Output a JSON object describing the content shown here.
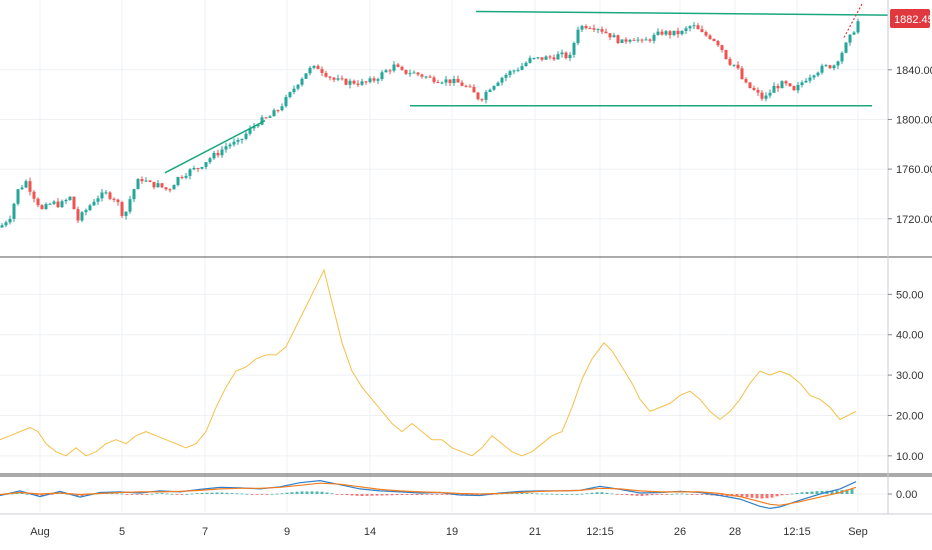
{
  "colors": {
    "up": "#26a69a",
    "down": "#ef5350",
    "grid": "#eef0f4",
    "axis_text": "#333333",
    "trendline": "#1aa780",
    "projection": "#e0383e",
    "price_tag": "#e0383e",
    "indicator_line": "#f5c04a",
    "macd_line": "#2f80c9",
    "signal_line": "#f27c1f"
  },
  "price_tag": "1882.45",
  "chart_data": [
    {
      "type": "candlestick",
      "panel": "price",
      "ylim": [
        1690,
        1893
      ],
      "y_ticks": [
        "1720.00",
        "1760.00",
        "1800.00",
        "1840.00"
      ],
      "x_index_range": [
        0,
        860
      ],
      "candles_close_path": [
        [
          0,
          1713
        ],
        [
          10,
          1722
        ],
        [
          18,
          1743
        ],
        [
          26,
          1750
        ],
        [
          34,
          1738
        ],
        [
          42,
          1727
        ],
        [
          52,
          1733
        ],
        [
          60,
          1731
        ],
        [
          70,
          1737
        ],
        [
          78,
          1719
        ],
        [
          86,
          1727
        ],
        [
          96,
          1737
        ],
        [
          106,
          1740
        ],
        [
          116,
          1736
        ],
        [
          124,
          1721
        ],
        [
          132,
          1741
        ],
        [
          140,
          1753
        ],
        [
          150,
          1748
        ],
        [
          158,
          1747
        ],
        [
          168,
          1743
        ],
        [
          178,
          1753
        ],
        [
          188,
          1758
        ],
        [
          198,
          1761
        ],
        [
          208,
          1768
        ],
        [
          218,
          1773
        ],
        [
          228,
          1780
        ],
        [
          238,
          1781
        ],
        [
          248,
          1790
        ],
        [
          258,
          1798
        ],
        [
          268,
          1801
        ],
        [
          278,
          1808
        ],
        [
          288,
          1818
        ],
        [
          298,
          1830
        ],
        [
          308,
          1840
        ],
        [
          318,
          1842
        ],
        [
          324,
          1838
        ],
        [
          334,
          1832
        ],
        [
          344,
          1830
        ],
        [
          354,
          1830
        ],
        [
          364,
          1829
        ],
        [
          374,
          1832
        ],
        [
          384,
          1838
        ],
        [
          394,
          1843
        ],
        [
          402,
          1838
        ],
        [
          410,
          1838
        ],
        [
          420,
          1836
        ],
        [
          430,
          1833
        ],
        [
          440,
          1832
        ],
        [
          450,
          1831
        ],
        [
          460,
          1829
        ],
        [
          470,
          1824
        ],
        [
          480,
          1816
        ],
        [
          490,
          1826
        ],
        [
          500,
          1833
        ],
        [
          510,
          1838
        ],
        [
          520,
          1842
        ],
        [
          530,
          1848
        ],
        [
          540,
          1849
        ],
        [
          550,
          1850
        ],
        [
          560,
          1852
        ],
        [
          570,
          1850
        ],
        [
          578,
          1874
        ],
        [
          588,
          1876
        ],
        [
          598,
          1874
        ],
        [
          606,
          1870
        ],
        [
          614,
          1866
        ],
        [
          622,
          1862
        ],
        [
          632,
          1867
        ],
        [
          642,
          1862
        ],
        [
          652,
          1866
        ],
        [
          662,
          1870
        ],
        [
          672,
          1869
        ],
        [
          682,
          1870
        ],
        [
          692,
          1876
        ],
        [
          702,
          1869
        ],
        [
          712,
          1866
        ],
        [
          720,
          1860
        ],
        [
          728,
          1847
        ],
        [
          736,
          1843
        ],
        [
          744,
          1829
        ],
        [
          754,
          1823
        ],
        [
          764,
          1816
        ],
        [
          774,
          1826
        ],
        [
          784,
          1829
        ],
        [
          794,
          1822
        ],
        [
          804,
          1832
        ],
        [
          814,
          1838
        ],
        [
          824,
          1842
        ],
        [
          834,
          1844
        ],
        [
          844,
          1857
        ],
        [
          852,
          1869
        ],
        [
          860,
          1882
        ]
      ],
      "trendlines": [
        {
          "from": [
            165,
            1757
          ],
          "to": [
            265,
            1799
          ]
        },
        {
          "from": [
            476,
            1887
          ],
          "to": [
            888,
            1884
          ]
        },
        {
          "from": [
            410,
            1811
          ],
          "to": [
            872,
            1811
          ]
        }
      ],
      "projection": {
        "from": [
          844,
          1866
        ],
        "to": [
          862,
          1893
        ]
      }
    },
    {
      "type": "line",
      "panel": "indicator",
      "ylim": [
        6,
        59
      ],
      "y_ticks": [
        "10.00",
        "20.00",
        "30.00",
        "40.00",
        "50.00"
      ],
      "series": [
        {
          "values": [
            [
              0,
              14
            ],
            [
              10,
              15
            ],
            [
              20,
              16
            ],
            [
              30,
              17
            ],
            [
              38,
              16
            ],
            [
              46,
              13
            ],
            [
              56,
              11
            ],
            [
              66,
              10
            ],
            [
              76,
              12
            ],
            [
              86,
              10
            ],
            [
              96,
              11
            ],
            [
              106,
              13
            ],
            [
              116,
              14
            ],
            [
              126,
              13
            ],
            [
              136,
              15
            ],
            [
              146,
              16
            ],
            [
              156,
              15
            ],
            [
              166,
              14
            ],
            [
              176,
              13
            ],
            [
              186,
              12
            ],
            [
              196,
              13
            ],
            [
              206,
              16
            ],
            [
              216,
              22
            ],
            [
              226,
              27
            ],
            [
              236,
              31
            ],
            [
              246,
              32
            ],
            [
              256,
              34
            ],
            [
              266,
              35
            ],
            [
              276,
              35
            ],
            [
              286,
              37
            ],
            [
              296,
              42
            ],
            [
              306,
              47
            ],
            [
              316,
              52
            ],
            [
              324,
              56
            ],
            [
              332,
              48
            ],
            [
              342,
              38
            ],
            [
              352,
              31
            ],
            [
              362,
              27
            ],
            [
              372,
              24
            ],
            [
              382,
              21
            ],
            [
              392,
              18
            ],
            [
              402,
              16
            ],
            [
              412,
              18
            ],
            [
              422,
              16
            ],
            [
              432,
              14
            ],
            [
              442,
              14
            ],
            [
              452,
              12
            ],
            [
              462,
              11
            ],
            [
              472,
              10
            ],
            [
              482,
              12
            ],
            [
              492,
              15
            ],
            [
              502,
              13
            ],
            [
              512,
              11
            ],
            [
              522,
              10
            ],
            [
              532,
              11
            ],
            [
              542,
              13
            ],
            [
              552,
              15
            ],
            [
              562,
              16
            ],
            [
              572,
              22
            ],
            [
              582,
              29
            ],
            [
              592,
              34
            ],
            [
              604,
              38
            ],
            [
              612,
              36
            ],
            [
              622,
              32
            ],
            [
              632,
              28
            ],
            [
              640,
              24
            ],
            [
              650,
              21
            ],
            [
              660,
              22
            ],
            [
              670,
              23
            ],
            [
              680,
              25
            ],
            [
              690,
              26
            ],
            [
              700,
              24
            ],
            [
              710,
              21
            ],
            [
              720,
              19
            ],
            [
              730,
              21
            ],
            [
              740,
              24
            ],
            [
              750,
              28
            ],
            [
              760,
              31
            ],
            [
              770,
              30
            ],
            [
              780,
              31
            ],
            [
              790,
              30
            ],
            [
              800,
              28
            ],
            [
              810,
              25
            ],
            [
              820,
              24
            ],
            [
              830,
              22
            ],
            [
              840,
              19
            ],
            [
              848,
              20
            ],
            [
              856,
              21
            ]
          ]
        }
      ]
    },
    {
      "type": "macd",
      "panel": "oscillator",
      "ylim": [
        -3.5,
        3.5
      ],
      "y_ticks": [
        "0.00"
      ],
      "series": [
        {
          "name": "",
          "color_key": "macd_line",
          "values": [
            [
              0,
              -0.3
            ],
            [
              20,
              0.6
            ],
            [
              40,
              -0.5
            ],
            [
              60,
              0.5
            ],
            [
              80,
              -0.6
            ],
            [
              100,
              0.3
            ],
            [
              120,
              0.4
            ],
            [
              140,
              0.2
            ],
            [
              160,
              0.6
            ],
            [
              180,
              0.4
            ],
            [
              200,
              0.9
            ],
            [
              220,
              1.3
            ],
            [
              240,
              1.2
            ],
            [
              260,
              1.0
            ],
            [
              280,
              1.4
            ],
            [
              300,
              2.2
            ],
            [
              320,
              2.6
            ],
            [
              340,
              1.8
            ],
            [
              360,
              1.0
            ],
            [
              380,
              0.6
            ],
            [
              400,
              0.4
            ],
            [
              420,
              0.2
            ],
            [
              440,
              0.3
            ],
            [
              460,
              -0.2
            ],
            [
              480,
              -0.3
            ],
            [
              500,
              0.2
            ],
            [
              520,
              0.5
            ],
            [
              540,
              0.6
            ],
            [
              560,
              0.6
            ],
            [
              580,
              0.7
            ],
            [
              600,
              1.5
            ],
            [
              620,
              0.9
            ],
            [
              640,
              0.2
            ],
            [
              660,
              0.3
            ],
            [
              680,
              0.5
            ],
            [
              700,
              0.3
            ],
            [
              720,
              -0.3
            ],
            [
              740,
              -1.0
            ],
            [
              760,
              -2.4
            ],
            [
              770,
              -2.8
            ],
            [
              780,
              -2.5
            ],
            [
              800,
              -1.2
            ],
            [
              820,
              0.0
            ],
            [
              840,
              1.0
            ],
            [
              856,
              2.4
            ]
          ]
        },
        {
          "name": "",
          "color_key": "signal_line",
          "values": [
            [
              0,
              -0.1
            ],
            [
              20,
              0.3
            ],
            [
              40,
              0.0
            ],
            [
              60,
              0.2
            ],
            [
              80,
              -0.1
            ],
            [
              100,
              0.1
            ],
            [
              120,
              0.3
            ],
            [
              140,
              0.4
            ],
            [
              160,
              0.4
            ],
            [
              180,
              0.5
            ],
            [
              200,
              0.7
            ],
            [
              220,
              1.0
            ],
            [
              240,
              1.1
            ],
            [
              260,
              1.1
            ],
            [
              280,
              1.3
            ],
            [
              300,
              1.7
            ],
            [
              320,
              2.1
            ],
            [
              340,
              1.9
            ],
            [
              360,
              1.4
            ],
            [
              380,
              0.9
            ],
            [
              400,
              0.6
            ],
            [
              420,
              0.4
            ],
            [
              440,
              0.3
            ],
            [
              460,
              0.1
            ],
            [
              480,
              0.0
            ],
            [
              500,
              0.1
            ],
            [
              520,
              0.3
            ],
            [
              540,
              0.5
            ],
            [
              560,
              0.6
            ],
            [
              580,
              0.7
            ],
            [
              600,
              1.1
            ],
            [
              620,
              1.0
            ],
            [
              640,
              0.6
            ],
            [
              660,
              0.4
            ],
            [
              680,
              0.4
            ],
            [
              700,
              0.4
            ],
            [
              720,
              0.1
            ],
            [
              740,
              -0.5
            ],
            [
              760,
              -1.5
            ],
            [
              770,
              -2.0
            ],
            [
              780,
              -2.2
            ],
            [
              800,
              -1.5
            ],
            [
              820,
              -0.6
            ],
            [
              840,
              0.3
            ],
            [
              856,
              1.3
            ]
          ]
        }
      ]
    }
  ],
  "x_axis": {
    "labels": [
      {
        "text": "Aug",
        "x": 40
      },
      {
        "text": "5",
        "x": 122
      },
      {
        "text": "7",
        "x": 205
      },
      {
        "text": "9",
        "x": 287
      },
      {
        "text": "14",
        "x": 370
      },
      {
        "text": "19",
        "x": 452
      },
      {
        "text": "21",
        "x": 535
      },
      {
        "text": "12:15",
        "x": 600
      },
      {
        "text": "26",
        "x": 680
      },
      {
        "text": "28",
        "x": 735
      },
      {
        "text": "12:15",
        "x": 797
      },
      {
        "text": "Sep",
        "x": 858
      }
    ]
  }
}
